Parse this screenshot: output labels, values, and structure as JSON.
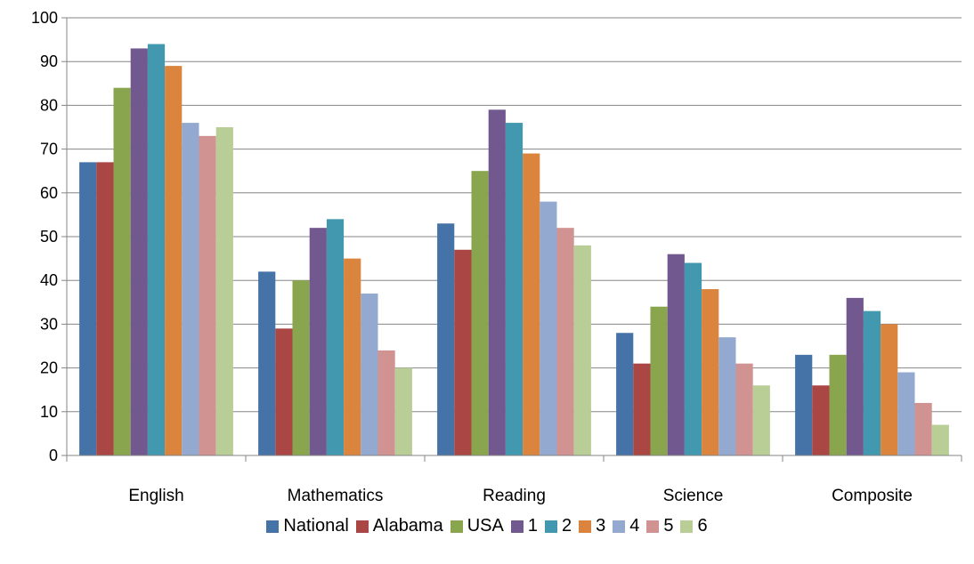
{
  "chart_data": {
    "type": "bar",
    "title": "",
    "xlabel": "",
    "ylabel": "",
    "ylim": [
      0,
      100
    ],
    "yticks": [
      0,
      10,
      20,
      30,
      40,
      50,
      60,
      70,
      80,
      90,
      100
    ],
    "grid": true,
    "legend_position": "bottom",
    "categories": [
      "English",
      "Mathematics",
      "Reading",
      "Science",
      "Composite"
    ],
    "series": [
      {
        "name": "National",
        "color": "#4572A7",
        "values": [
          67,
          42,
          53,
          28,
          23
        ]
      },
      {
        "name": "Alabama",
        "color": "#AA4643",
        "values": [
          67,
          29,
          47,
          21,
          16
        ]
      },
      {
        "name": "USA",
        "color": "#89A54E",
        "values": [
          84,
          40,
          65,
          34,
          23
        ]
      },
      {
        "name": "1",
        "color": "#71588F",
        "values": [
          93,
          52,
          79,
          46,
          36
        ]
      },
      {
        "name": "2",
        "color": "#4198AF",
        "values": [
          94,
          54,
          76,
          44,
          33
        ]
      },
      {
        "name": "3",
        "color": "#DB843D",
        "values": [
          89,
          45,
          69,
          38,
          30
        ]
      },
      {
        "name": "4",
        "color": "#93A9CF",
        "values": [
          76,
          37,
          58,
          27,
          19
        ]
      },
      {
        "name": "5",
        "color": "#D19392",
        "values": [
          73,
          24,
          52,
          21,
          12
        ]
      },
      {
        "name": "6",
        "color": "#B9CD96",
        "values": [
          75,
          20,
          48,
          16,
          7
        ]
      }
    ]
  }
}
